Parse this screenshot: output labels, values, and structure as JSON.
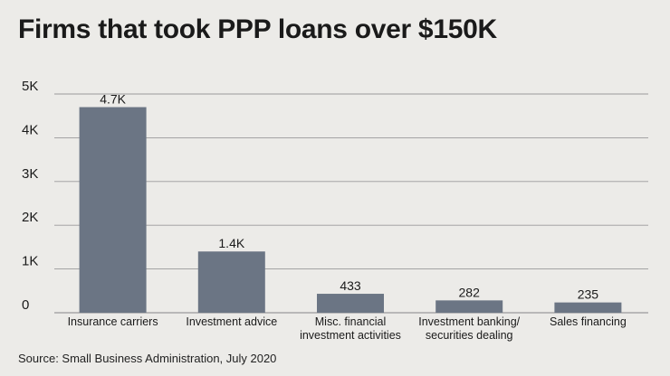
{
  "title": "Firms that took PPP loans over $150K",
  "source": "Source: Small Business Administration, July 2020",
  "colors": {
    "bar": "#6b7584",
    "grid": "#9a9a9a",
    "background": "#ecebe8"
  },
  "chart_data": {
    "type": "bar",
    "title": "Firms that took PPP loans over $150K",
    "categories": [
      [
        "Insurance carriers"
      ],
      [
        "Investment advice"
      ],
      [
        "Misc. financial",
        "investment activities"
      ],
      [
        "Investment banking/",
        "securities dealing"
      ],
      [
        "Sales financing"
      ]
    ],
    "values": [
      4700,
      1400,
      433,
      282,
      235
    ],
    "data_labels": [
      "4.7K",
      "1.4K",
      "433",
      "282",
      "235"
    ],
    "ylim": [
      0,
      5000
    ],
    "yticks": [
      0,
      1000,
      2000,
      3000,
      4000,
      5000
    ],
    "ytick_labels": [
      "0",
      "1K",
      "2K",
      "3K",
      "4K",
      "5K"
    ],
    "xlabel": "",
    "ylabel": "",
    "grid": true,
    "legend": "none"
  }
}
